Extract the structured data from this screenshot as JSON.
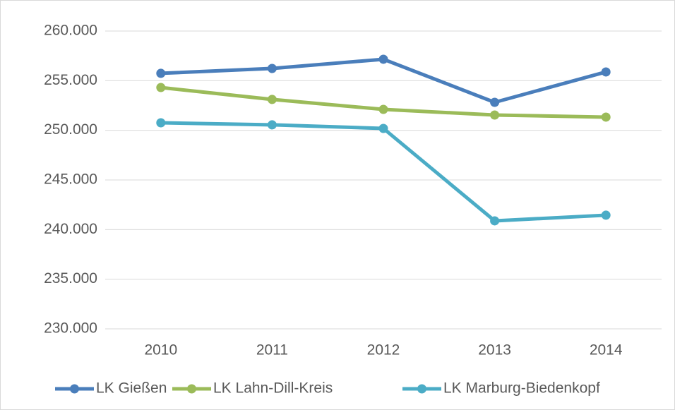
{
  "chart_data": {
    "type": "line",
    "categories": [
      "2010",
      "2011",
      "2012",
      "2013",
      "2014"
    ],
    "series": [
      {
        "name": "LK Gießen",
        "color": "#4a7ebb",
        "values": [
          255740,
          256230,
          257160,
          252820,
          255880
        ]
      },
      {
        "name": "LK Lahn-Dill-Kreis",
        "color": "#9bbb59",
        "values": [
          254310,
          253110,
          252110,
          251540,
          251330
        ]
      },
      {
        "name": "LK Marburg-Biedenkopf",
        "color": "#4bacc6",
        "values": [
          250760,
          250550,
          250190,
          240880,
          241450
        ]
      }
    ],
    "ylim": [
      230000,
      260000
    ],
    "yticks": [
      {
        "value": 230000,
        "label": "230.000"
      },
      {
        "value": 235000,
        "label": "235.000"
      },
      {
        "value": 240000,
        "label": "240.000"
      },
      {
        "value": 245000,
        "label": "245.000"
      },
      {
        "value": 250000,
        "label": "250.000"
      },
      {
        "value": 255000,
        "label": "255.000"
      },
      {
        "value": 260000,
        "label": "260.000"
      }
    ],
    "grid": true,
    "legend": "bottom"
  }
}
